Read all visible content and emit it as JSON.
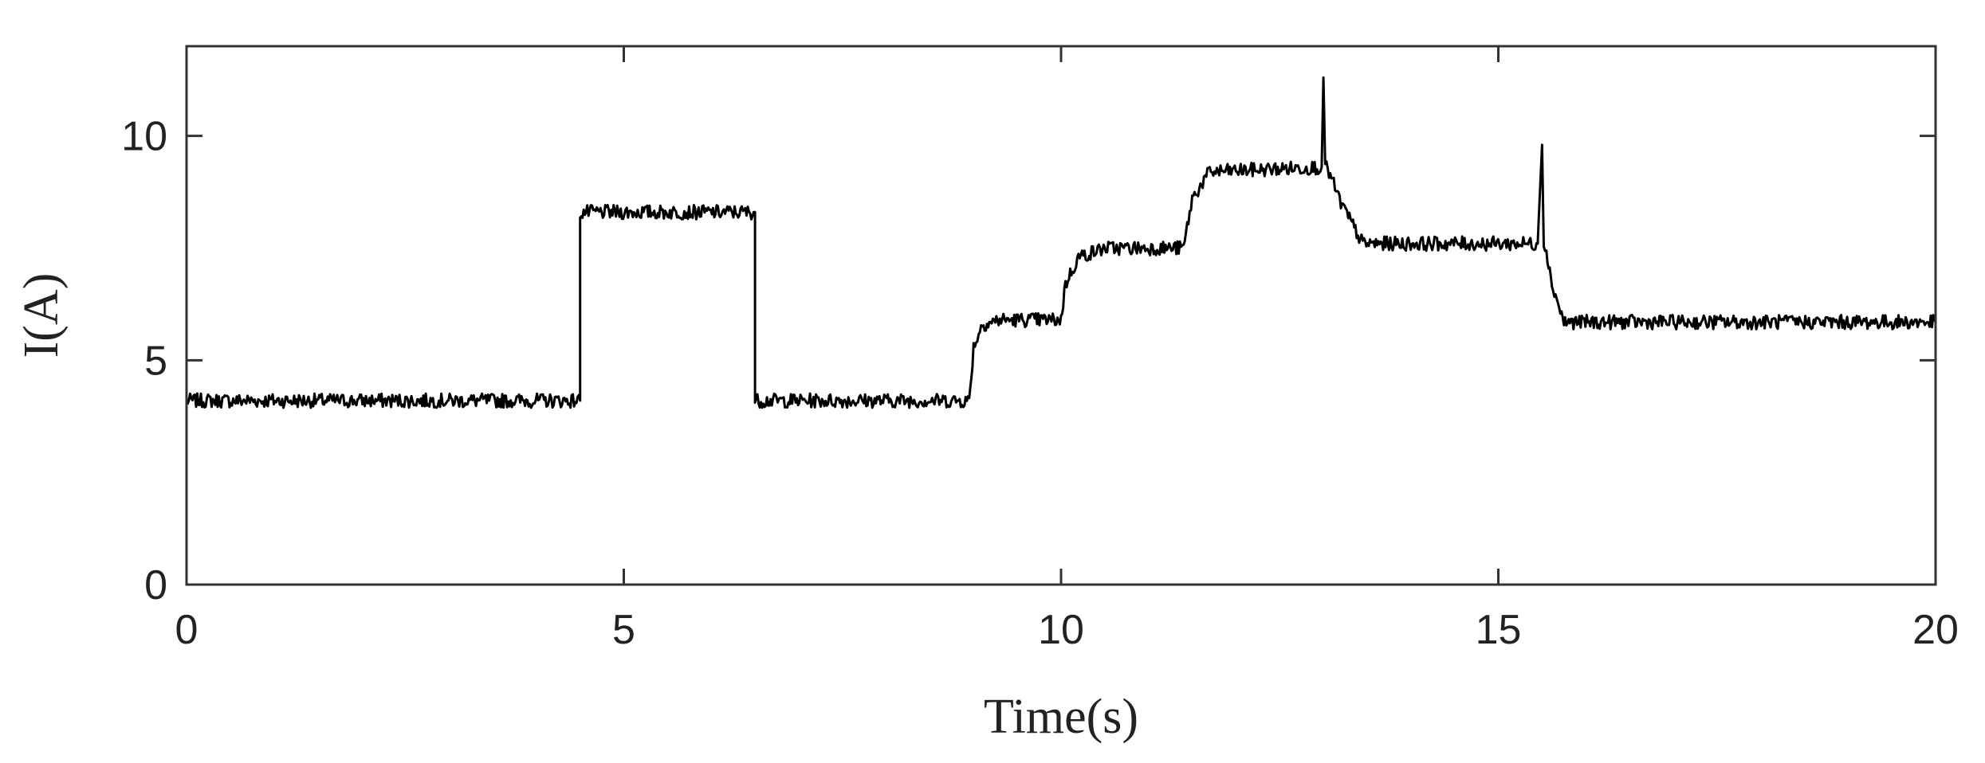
{
  "chart_data": {
    "type": "line",
    "title": "",
    "xlabel": "Time(s)",
    "ylabel": "I(A)",
    "xlim": [
      0,
      20
    ],
    "ylim": [
      0,
      12
    ],
    "xticks": [
      0,
      5,
      10,
      15,
      20
    ],
    "yticks": [
      0,
      5,
      10
    ],
    "xtick_labels": [
      "0",
      "5",
      "10",
      "15",
      "20"
    ],
    "ytick_labels": [
      "0",
      "5",
      "10"
    ],
    "grid": false,
    "line_color": "#000000",
    "series": [
      {
        "x": [
          0,
          4.5,
          4.5,
          6.5,
          6.5,
          8.95,
          9.0,
          9.1,
          9.3,
          10.0,
          10.05,
          10.2,
          10.5,
          11.4,
          11.5,
          11.7,
          12.9,
          12.98,
          13.0,
          13.02,
          13.05,
          13.2,
          13.45,
          15.45,
          15.5,
          15.52,
          15.55,
          15.6,
          15.75,
          20
        ],
        "y": [
          4.1,
          4.1,
          8.3,
          8.3,
          4.1,
          4.1,
          5.3,
          5.8,
          5.9,
          5.9,
          6.7,
          7.3,
          7.5,
          7.5,
          8.6,
          9.2,
          9.3,
          9.3,
          11.3,
          9.3,
          9.25,
          8.5,
          7.6,
          7.6,
          9.8,
          7.6,
          7.5,
          6.8,
          5.85,
          5.85
        ]
      }
    ]
  }
}
